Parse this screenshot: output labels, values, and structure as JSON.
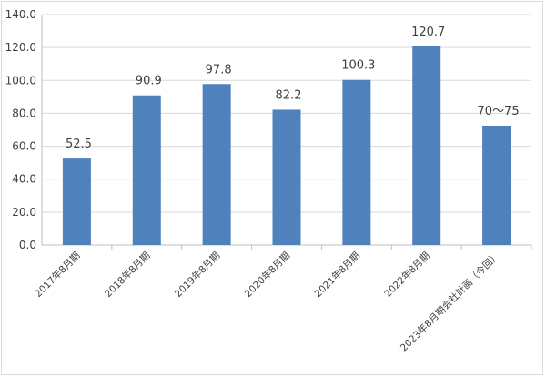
{
  "chart_data": {
    "type": "bar",
    "categories": [
      "2017年8月期",
      "2018年8月期",
      "2019年8月期",
      "2020年8月期",
      "2021年8月期",
      "2022年8月期",
      "2023年8月期会社計画（今回）"
    ],
    "values": [
      52.5,
      90.9,
      97.8,
      82.2,
      100.3,
      120.7,
      72.5
    ],
    "data_labels": [
      "52.5",
      "90.9",
      "97.8",
      "82.2",
      "100.3",
      "120.7",
      "70～75"
    ],
    "yticks": [
      "0.0",
      "20.0",
      "40.0",
      "60.0",
      "80.0",
      "100.0",
      "120.0",
      "140.0"
    ],
    "ylim": [
      0,
      140
    ],
    "title": "",
    "xlabel": "",
    "ylabel": "",
    "grid": true,
    "legend": "none",
    "bar_color": "#4f81bd",
    "grid_color": "#d9d9d9"
  }
}
